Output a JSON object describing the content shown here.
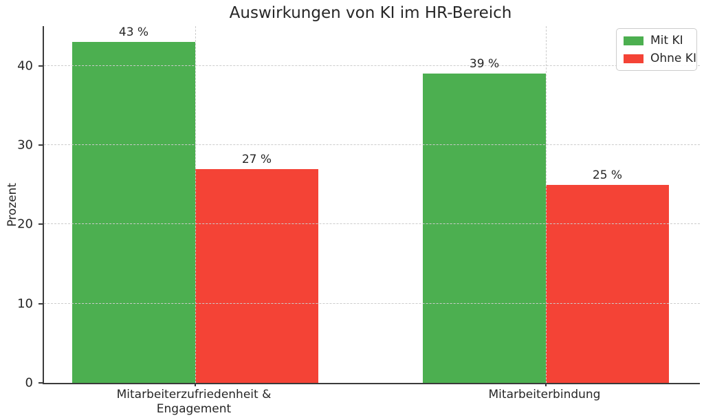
{
  "chart_data": {
    "type": "bar",
    "title": "Auswirkungen von KI im HR-Bereich",
    "ylabel": "Prozent",
    "xlabel": "",
    "categories": [
      "Mitarbeiterzufriedenheit &\nEngagement",
      "Mitarbeiterbindung"
    ],
    "series": [
      {
        "name": "Mit KI",
        "color": "#4CAF50",
        "values": [
          43,
          39
        ],
        "labels": [
          "43 %",
          "39 %"
        ]
      },
      {
        "name": "Ohne KI",
        "color": "#F44336",
        "values": [
          27,
          25
        ],
        "labels": [
          "27 %",
          "25 %"
        ]
      }
    ],
    "yticks": [
      0,
      10,
      20,
      30,
      40
    ],
    "ylim": [
      0,
      45
    ],
    "grid": true,
    "grid_style": "dashed",
    "grid_over_bars": true,
    "legend_position": "upper right",
    "unit": "%"
  },
  "colors": {
    "mit_ki": "#4CAF50",
    "ohne_ki": "#F44336",
    "text": "#262626",
    "spine": "#3a3a3a",
    "grid": "#cccccc",
    "background": "#ffffff"
  }
}
